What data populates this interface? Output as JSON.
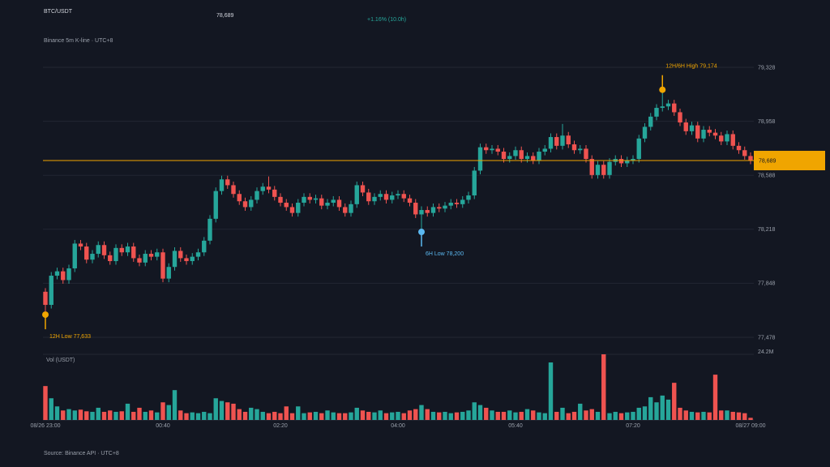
{
  "chart_data": {
    "type": "candlestick",
    "title": "BTC/USDT",
    "change": "+1.16% (10.0h)",
    "subtitle": "Binance 5m K-line · UTC+8",
    "source": "Source: Binance API · UTC+8",
    "last_price": {
      "value": 78689,
      "label": "78,689"
    },
    "up_color": "#26a69a",
    "down_color": "#ef5350",
    "accent_color": "#f0a500",
    "low_color": "#5bb8f0",
    "grid": true,
    "categories": [
      "08/26 23:00",
      null,
      null,
      null,
      null,
      null,
      null,
      null,
      null,
      null,
      null,
      null,
      null,
      null,
      null,
      null,
      null,
      null,
      null,
      null,
      "00:40",
      null,
      null,
      null,
      null,
      null,
      null,
      null,
      null,
      null,
      null,
      null,
      null,
      null,
      null,
      null,
      null,
      null,
      null,
      null,
      "02:20",
      null,
      null,
      null,
      null,
      null,
      null,
      null,
      null,
      null,
      null,
      null,
      null,
      null,
      null,
      null,
      null,
      null,
      null,
      null,
      "04:00",
      null,
      null,
      null,
      null,
      null,
      null,
      null,
      null,
      null,
      null,
      null,
      null,
      null,
      null,
      null,
      null,
      null,
      null,
      null,
      "05:40",
      null,
      null,
      null,
      null,
      null,
      null,
      null,
      null,
      null,
      null,
      null,
      null,
      null,
      null,
      null,
      null,
      null,
      null,
      null,
      "07:20",
      null,
      null,
      null,
      null,
      null,
      null,
      null,
      null,
      null,
      null,
      null,
      null,
      null,
      null,
      null,
      null,
      null,
      null,
      null,
      "08/27 09:00"
    ],
    "open": [
      77790,
      77700,
      77900,
      77930,
      77870,
      77950,
      78120,
      78100,
      78010,
      78050,
      78110,
      78040,
      78000,
      78090,
      78060,
      78100,
      78020,
      77990,
      78050,
      78030,
      78060,
      77880,
      77960,
      78070,
      78020,
      78000,
      78030,
      78060,
      78140,
      78290,
      78480,
      78560,
      78520,
      78460,
      78410,
      78370,
      78420,
      78480,
      78510,
      78490,
      78440,
      78400,
      78370,
      78330,
      78400,
      78440,
      78420,
      78430,
      78380,
      78400,
      78420,
      78370,
      78330,
      78390,
      78520,
      78470,
      78410,
      78440,
      78460,
      78420,
      78450,
      78460,
      78430,
      78400,
      78320,
      78350,
      78330,
      78370,
      78360,
      78380,
      78400,
      78390,
      78420,
      78450,
      78620,
      78780,
      78760,
      78770,
      78750,
      78700,
      78720,
      78760,
      78700,
      78720,
      78690,
      78750,
      78770,
      78850,
      78790,
      78860,
      78800,
      78760,
      78770,
      78700,
      78590,
      78660,
      78590,
      78680,
      78700,
      78670,
      78690,
      78700,
      78840,
      78920,
      78990,
      79050,
      79060,
      79080,
      79020,
      78950,
      78890,
      78930,
      78840,
      78900,
      78880,
      78860,
      78820,
      78870,
      78790,
      78760,
      78720
    ],
    "high": [
      77815,
      77925,
      77955,
      77955,
      77975,
      78145,
      78145,
      78125,
      78075,
      78135,
      78135,
      78065,
      78115,
      78115,
      78125,
      78125,
      78045,
      78075,
      78075,
      78085,
      78085,
      77985,
      78095,
      78095,
      78045,
      78055,
      78085,
      78165,
      78315,
      78505,
      78585,
      78585,
      78545,
      78485,
      78435,
      78445,
      78505,
      78535,
      78580,
      78515,
      78465,
      78425,
      78395,
      78425,
      78465,
      78465,
      78455,
      78455,
      78425,
      78445,
      78445,
      78395,
      78415,
      78545,
      78545,
      78495,
      78465,
      78485,
      78485,
      78475,
      78485,
      78485,
      78455,
      78425,
      78375,
      78375,
      78395,
      78395,
      78405,
      78425,
      78425,
      78445,
      78475,
      78645,
      78805,
      78805,
      78795,
      78795,
      78775,
      78745,
      78785,
      78785,
      78745,
      78745,
      78775,
      78795,
      78875,
      78875,
      78940,
      78885,
      78825,
      78795,
      78795,
      78725,
      78685,
      78685,
      78705,
      78725,
      78725,
      78715,
      78725,
      78865,
      78945,
      79015,
      79075,
      79174,
      79105,
      79105,
      79045,
      78975,
      78955,
      78955,
      78925,
      78925,
      78905,
      78885,
      78895,
      78895,
      78815,
      78785,
      78745
    ],
    "low": [
      77633,
      77675,
      77875,
      77845,
      77845,
      77925,
      78075,
      77985,
      77985,
      78025,
      78015,
      77975,
      77975,
      78035,
      78035,
      77995,
      77965,
      77965,
      78005,
      78005,
      77855,
      77855,
      77935,
      77995,
      77975,
      77975,
      78005,
      78035,
      78115,
      78265,
      78455,
      78495,
      78435,
      78385,
      78345,
      78345,
      78395,
      78455,
      78465,
      78415,
      78375,
      78345,
      78305,
      78305,
      78375,
      78395,
      78395,
      78355,
      78355,
      78375,
      78345,
      78305,
      78305,
      78365,
      78445,
      78385,
      78385,
      78415,
      78395,
      78395,
      78425,
      78405,
      78375,
      78295,
      78200,
      78305,
      78305,
      78335,
      78335,
      78355,
      78365,
      78365,
      78395,
      78425,
      78595,
      78735,
      78735,
      78725,
      78675,
      78675,
      78695,
      78675,
      78675,
      78665,
      78665,
      78725,
      78745,
      78765,
      78765,
      78775,
      78735,
      78735,
      78675,
      78565,
      78565,
      78565,
      78565,
      78655,
      78645,
      78645,
      78665,
      78675,
      78815,
      78895,
      78965,
      79025,
      79035,
      78995,
      78925,
      78865,
      78865,
      78815,
      78815,
      78855,
      78835,
      78795,
      78795,
      78765,
      78735,
      78695,
      78664
    ],
    "close": [
      77700,
      77900,
      77930,
      77870,
      77950,
      78120,
      78100,
      78010,
      78050,
      78110,
      78040,
      78000,
      78090,
      78060,
      78100,
      78020,
      77990,
      78050,
      78030,
      78060,
      77880,
      77960,
      78070,
      78020,
      78000,
      78030,
      78060,
      78140,
      78290,
      78480,
      78560,
      78520,
      78460,
      78410,
      78370,
      78420,
      78480,
      78510,
      78490,
      78440,
      78400,
      78370,
      78330,
      78400,
      78440,
      78420,
      78430,
      78380,
      78400,
      78420,
      78370,
      78330,
      78390,
      78520,
      78470,
      78410,
      78440,
      78460,
      78420,
      78450,
      78460,
      78430,
      78400,
      78320,
      78350,
      78330,
      78370,
      78360,
      78380,
      78400,
      78390,
      78420,
      78450,
      78620,
      78780,
      78760,
      78770,
      78750,
      78700,
      78720,
      78760,
      78700,
      78720,
      78690,
      78750,
      78770,
      78850,
      78790,
      78860,
      78800,
      78760,
      78770,
      78700,
      78590,
      78660,
      78590,
      78680,
      78700,
      78670,
      78690,
      78700,
      78840,
      78920,
      78990,
      79050,
      79060,
      79080,
      79020,
      78950,
      78890,
      78930,
      78840,
      78900,
      78880,
      78860,
      78820,
      78870,
      78790,
      78760,
      78720,
      78689
    ],
    "ylim": [
      77478,
      79328
    ],
    "yticks": [
      {
        "value": 77478,
        "label": "77,478"
      },
      {
        "value": 77848,
        "label": "77,848"
      },
      {
        "value": 78218,
        "label": "78,218"
      },
      {
        "value": 78588,
        "label": "78,588"
      },
      {
        "value": 78958,
        "label": "78,958"
      },
      {
        "value": 79328,
        "label": "79,328"
      }
    ],
    "annotations": [
      {
        "text": "12H/6H High 79,174",
        "x": 105,
        "value": 79174,
        "kind": "high"
      },
      {
        "text": "6H Low 78,200",
        "x": 64,
        "value": 78200,
        "kind": "low"
      },
      {
        "text": "12H Low 77,633",
        "x": 0,
        "value": 77633,
        "kind": "low12"
      }
    ],
    "volume": {
      "label": "Vol (USDT)",
      "ylim": [
        0,
        24.2
      ],
      "yticks": [
        {
          "value": 24.2,
          "label": "24.2M"
        }
      ],
      "values": [
        12.5,
        8.0,
        5.0,
        3.5,
        4.0,
        3.5,
        3.8,
        3.2,
        3.0,
        4.5,
        3.0,
        3.5,
        3.0,
        3.2,
        6.0,
        3.0,
        4.5,
        3.0,
        3.5,
        2.8,
        6.5,
        5.5,
        11.0,
        3.5,
        2.5,
        2.8,
        2.5,
        3.0,
        2.5,
        8.0,
        7.0,
        6.5,
        6.0,
        4.0,
        3.0,
        4.5,
        4.0,
        3.0,
        2.5,
        3.0,
        2.5,
        5.0,
        2.5,
        5.0,
        2.5,
        2.8,
        3.0,
        2.5,
        3.5,
        2.8,
        2.5,
        2.5,
        2.8,
        4.5,
        3.5,
        3.0,
        2.8,
        3.5,
        2.5,
        2.8,
        3.0,
        2.5,
        3.5,
        4.0,
        5.5,
        4.0,
        3.0,
        2.8,
        3.0,
        2.5,
        2.8,
        3.0,
        3.5,
        6.5,
        5.5,
        4.5,
        3.5,
        3.0,
        3.0,
        3.5,
        2.8,
        3.0,
        4.0,
        3.5,
        2.8,
        2.5,
        21.2,
        3.0,
        4.5,
        2.5,
        3.0,
        6.0,
        3.5,
        4.0,
        3.0,
        24.2,
        2.5,
        3.0,
        2.5,
        2.8,
        3.0,
        4.5,
        5.0,
        8.4,
        6.5,
        9.0,
        7.5,
        13.7,
        4.5,
        3.5,
        3.0,
        2.8,
        3.0,
        2.8,
        16.7,
        3.5,
        3.5,
        3.0,
        2.8,
        2.5,
        0.8
      ]
    }
  }
}
